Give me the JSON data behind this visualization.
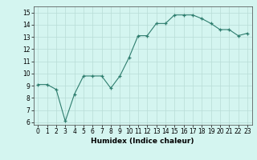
{
  "x": [
    0,
    1,
    2,
    3,
    4,
    5,
    6,
    7,
    8,
    9,
    10,
    11,
    12,
    13,
    14,
    15,
    16,
    17,
    18,
    19,
    20,
    21,
    22,
    23
  ],
  "y": [
    9.1,
    9.1,
    8.7,
    6.1,
    8.3,
    9.8,
    9.8,
    9.8,
    8.8,
    9.8,
    11.3,
    13.1,
    13.1,
    14.1,
    14.1,
    14.8,
    14.8,
    14.8,
    14.5,
    14.1,
    13.6,
    13.6,
    13.1,
    13.3
  ],
  "line_color": "#2e7d6e",
  "marker": "+",
  "marker_size": 3,
  "bg_color": "#d4f5f0",
  "grid_color": "#b8dcd6",
  "xlabel": "Humidex (Indice chaleur)",
  "xlim": [
    -0.5,
    23.5
  ],
  "ylim": [
    5.8,
    15.5
  ],
  "yticks": [
    6,
    7,
    8,
    9,
    10,
    11,
    12,
    13,
    14,
    15
  ],
  "xticks": [
    0,
    1,
    2,
    3,
    4,
    5,
    6,
    7,
    8,
    9,
    10,
    11,
    12,
    13,
    14,
    15,
    16,
    17,
    18,
    19,
    20,
    21,
    22,
    23
  ],
  "tick_fontsize": 5.5,
  "xlabel_fontsize": 6.5
}
